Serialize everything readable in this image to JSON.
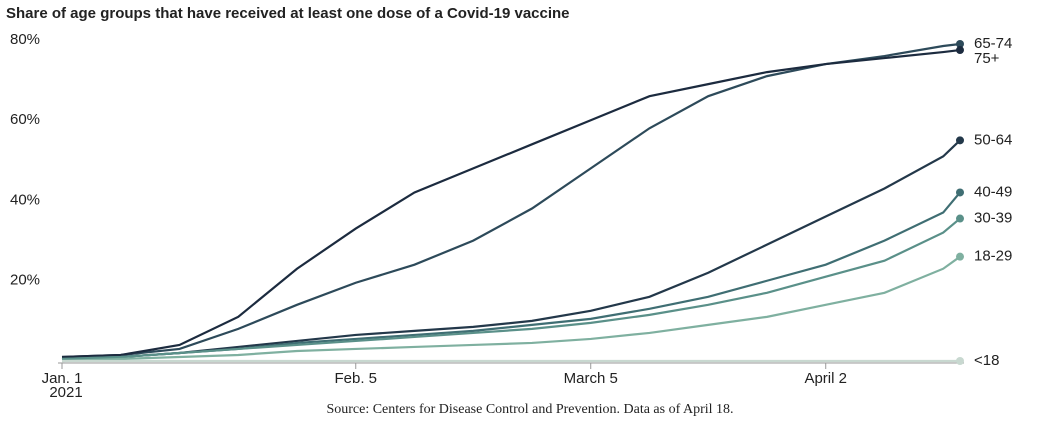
{
  "chart_data": {
    "type": "line",
    "title": "Share of age groups that have received at least one dose of a Covid-19 vaccine",
    "source": "Source: Centers for Disease Control and Prevention. Data as of April 18.",
    "x": [
      "2021-01-01",
      "2021-01-08",
      "2021-01-15",
      "2021-01-22",
      "2021-01-29",
      "2021-02-05",
      "2021-02-12",
      "2021-02-19",
      "2021-02-26",
      "2021-03-05",
      "2021-03-12",
      "2021-03-19",
      "2021-03-26",
      "2021-04-02",
      "2021-04-09",
      "2021-04-16",
      "2021-04-18"
    ],
    "xlim": [
      "2021-01-01",
      "2021-04-18"
    ],
    "xticks": [
      {
        "value": "2021-01-01",
        "label": "Jan. 1"
      },
      {
        "value": "2021-02-05",
        "label": "Feb. 5"
      },
      {
        "value": "2021-03-05",
        "label": "March 5"
      },
      {
        "value": "2021-04-02",
        "label": "April 2"
      }
    ],
    "x_year_label": "2021",
    "ylim": [
      0,
      80
    ],
    "yticks": [
      {
        "value": 20,
        "label": "20%"
      },
      {
        "value": 40,
        "label": "40%"
      },
      {
        "value": 60,
        "label": "60%"
      },
      {
        "value": 80,
        "label": "80%"
      }
    ],
    "grid": false,
    "series": [
      {
        "name": "65-74",
        "color": "#2d4a5a",
        "values": [
          1,
          1.5,
          3,
          8,
          14,
          19.5,
          24,
          30,
          38,
          48,
          58,
          66,
          71,
          74,
          76,
          78.5,
          79
        ]
      },
      {
        "name": "75+",
        "color": "#1c2b3f",
        "values": [
          1,
          1.5,
          4,
          11,
          23,
          33,
          42,
          48,
          54,
          60,
          66,
          69,
          72,
          74,
          75.5,
          77,
          77.5
        ]
      },
      {
        "name": "50-64",
        "color": "#23384a",
        "values": [
          0.5,
          1,
          2,
          3.5,
          5,
          6.5,
          7.5,
          8.5,
          10,
          12.5,
          16,
          22,
          29,
          36,
          43,
          51,
          55
        ]
      },
      {
        "name": "40-49",
        "color": "#3f6e73",
        "values": [
          0.5,
          1,
          2,
          3,
          4.5,
          5.5,
          6.5,
          7.5,
          9,
          10.5,
          13,
          16,
          20,
          24,
          30,
          37,
          42
        ]
      },
      {
        "name": "30-39",
        "color": "#5a9089",
        "values": [
          0.5,
          1,
          2,
          3,
          4,
          5,
          6,
          7,
          8,
          9.5,
          11.5,
          14,
          17,
          21,
          25,
          32,
          35.5
        ]
      },
      {
        "name": "18-29",
        "color": "#7fb0a0",
        "values": [
          0,
          0.5,
          1,
          1.5,
          2.5,
          3,
          3.5,
          4,
          4.5,
          5.5,
          7,
          9,
          11,
          14,
          17,
          23,
          26
        ]
      },
      {
        "name": "<18",
        "color": "#c8d8d0",
        "values": [
          0,
          0,
          0,
          0,
          0,
          0,
          0,
          0,
          0,
          0,
          0,
          0,
          0,
          0,
          0,
          0,
          0
        ]
      }
    ]
  }
}
